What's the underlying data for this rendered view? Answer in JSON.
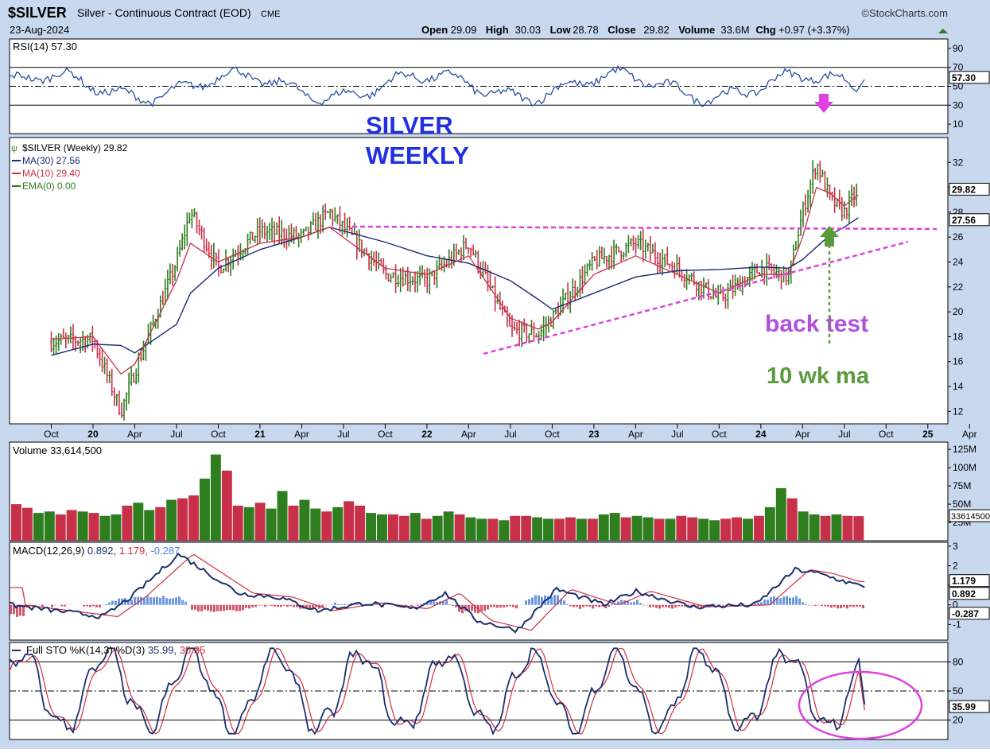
{
  "header": {
    "symbol": "$SILVER",
    "name": "Silver - Continuous Contract (EOD)",
    "exchange": "CME",
    "date": "23-Aug-2024",
    "brand": "©StockCharts.com",
    "quote": [
      {
        "label": "Open",
        "value": "29.09"
      },
      {
        "label": "High",
        "value": "30.03"
      },
      {
        "label": "Low",
        "value": "28.78"
      },
      {
        "label": "Close",
        "value": "29.82"
      },
      {
        "label": "Volume",
        "value": "33.6M"
      },
      {
        "label": "Chg",
        "value": "+0.97 (+3.37%)"
      }
    ]
  },
  "colors": {
    "panel_bg": "#ffffff",
    "page_bg": "#c8d8ee",
    "up": "#2e7d1f",
    "down": "#c8304a",
    "ma30": "#1a2a7a",
    "ma10": "#c8304a",
    "ema0": "#2e7d1f",
    "rsi": "#2a4fa0",
    "macd": "#1c2f6e",
    "signal": "#d03040",
    "hist": "#4a7fd8",
    "annot_pink": "#e040e0",
    "annot_blue": "#2030e0",
    "annot_purple": "#b050e0",
    "annot_green": "#5a9a3a"
  },
  "annotations": {
    "silver": "SILVER",
    "weekly": "WEEKLY",
    "backtest": "back test",
    "tenwk": "10 wk ma"
  },
  "x_axis": {
    "labels": [
      "Oct",
      "20",
      "Apr",
      "Jul",
      "Oct",
      "21",
      "Apr",
      "Jul",
      "Oct",
      "22",
      "Apr",
      "Jul",
      "Oct",
      "23",
      "Apr",
      "Jul",
      "Oct",
      "24",
      "Apr",
      "Jul",
      "Oct",
      "25",
      "Apr"
    ],
    "year_labels": [
      "20",
      "21",
      "22",
      "23",
      "24",
      "25"
    ]
  },
  "chart_data": [
    {
      "type": "line",
      "panel": "RSI",
      "title": "RSI(14) 57.30",
      "ylim": [
        0,
        100
      ],
      "ticks": [
        10,
        30,
        50,
        70,
        90
      ],
      "series": [
        {
          "name": "RSI(14)",
          "last": 57.3
        }
      ],
      "ref_lines": [
        30,
        50,
        70
      ]
    },
    {
      "type": "line",
      "panel": "Price",
      "title": "$SILVER (Weekly) 29.82",
      "ylim": [
        11,
        34
      ],
      "ticks": [
        12,
        14,
        16,
        18,
        20,
        22,
        24,
        26,
        28,
        30,
        32
      ],
      "legend": [
        "$SILVER (Weekly) 29.82",
        "MA(30) 27.56",
        "MA(10) 29.40",
        "EMA(0) 0.00"
      ],
      "price_labels": [
        "29.82",
        "27.56"
      ],
      "x": [
        "2019-10",
        "2020-01",
        "2020-03",
        "2020-04",
        "2020-07",
        "2020-08",
        "2020-10",
        "2021-01",
        "2021-04",
        "2021-06",
        "2021-10",
        "2022-01",
        "2022-04",
        "2022-07",
        "2022-09",
        "2022-10",
        "2023-01",
        "2023-04",
        "2023-07",
        "2023-10",
        "2024-01",
        "2024-03",
        "2024-04",
        "2024-05",
        "2024-06",
        "2024-07",
        "2024-08"
      ],
      "series": [
        {
          "name": "$SILVER (Weekly) 29.82",
          "values": [
            17.6,
            17.8,
            12.0,
            15.2,
            24.0,
            28.0,
            23.5,
            26.5,
            26.0,
            28.0,
            23.0,
            22.5,
            25.5,
            18.5,
            18.2,
            19.5,
            24.0,
            25.5,
            23.5,
            21.0,
            23.5,
            22.8,
            28.0,
            32.0,
            29.0,
            28.0,
            29.82
          ]
        },
        {
          "name": "MA(30) 27.56",
          "values": [
            16.5,
            17.4,
            17.3,
            16.7,
            19.0,
            21.5,
            23.5,
            25.0,
            26.0,
            26.8,
            25.6,
            24.5,
            23.9,
            22.5,
            21.0,
            20.2,
            21.5,
            22.8,
            23.3,
            23.4,
            23.6,
            23.5,
            24.2,
            25.2,
            26.2,
            26.8,
            27.56
          ]
        },
        {
          "name": "MA(10) 29.40",
          "values": [
            17.8,
            18.0,
            15.0,
            15.8,
            22.5,
            25.5,
            24.0,
            25.5,
            26.0,
            26.8,
            23.5,
            23.0,
            24.5,
            19.5,
            18.6,
            19.2,
            23.0,
            24.5,
            23.0,
            21.5,
            23.0,
            23.0,
            26.0,
            30.0,
            29.5,
            28.5,
            29.4
          ]
        }
      ]
    },
    {
      "type": "bar",
      "panel": "Volume",
      "title": "Volume 33,614,500",
      "ticks": [
        "25M",
        "50M",
        "75M",
        "100M",
        "125M"
      ],
      "ylim": [
        0,
        135
      ],
      "last_label": "33614500",
      "values": [
        50,
        45,
        38,
        40,
        36,
        42,
        40,
        38,
        34,
        36,
        48,
        52,
        42,
        46,
        56,
        58,
        62,
        85,
        118,
        96,
        48,
        46,
        52,
        44,
        68,
        48,
        56,
        44,
        40,
        46,
        54,
        48,
        38,
        36,
        36,
        34,
        38,
        30,
        34,
        40,
        36,
        32,
        30,
        30,
        28,
        34,
        34,
        32,
        30,
        30,
        32,
        30,
        30,
        36,
        38,
        32,
        34,
        32,
        30,
        30,
        34,
        32,
        30,
        28,
        30,
        32,
        30,
        34,
        46,
        72,
        58,
        40,
        36,
        34,
        36,
        34,
        33.6
      ]
    },
    {
      "type": "line",
      "panel": "MACD",
      "title": "MACD(12,26,9) 0.892, 1.179, -0.287",
      "ylim": [
        -1.8,
        3.2
      ],
      "ticks": [
        -1,
        0,
        1,
        2,
        3
      ],
      "labels": [
        "1.179",
        "0.892",
        "-0.287"
      ],
      "series": [
        {
          "name": "MACD(12,26,9)",
          "last": 0.892
        },
        {
          "name": "Signal",
          "last": 1.179
        },
        {
          "name": "Histogram",
          "last": -0.287
        }
      ]
    },
    {
      "type": "line",
      "panel": "Stochastic",
      "title": "Full STO %K(14,3) %D(3) 35.99, 30.35",
      "ylim": [
        0,
        100
      ],
      "ticks": [
        20,
        50,
        80
      ],
      "ref_lines": [
        20,
        50,
        80
      ],
      "series": [
        {
          "name": "%K(14,3)",
          "last": 35.99
        },
        {
          "name": "%D(3)",
          "last": 30.35
        }
      ]
    }
  ]
}
